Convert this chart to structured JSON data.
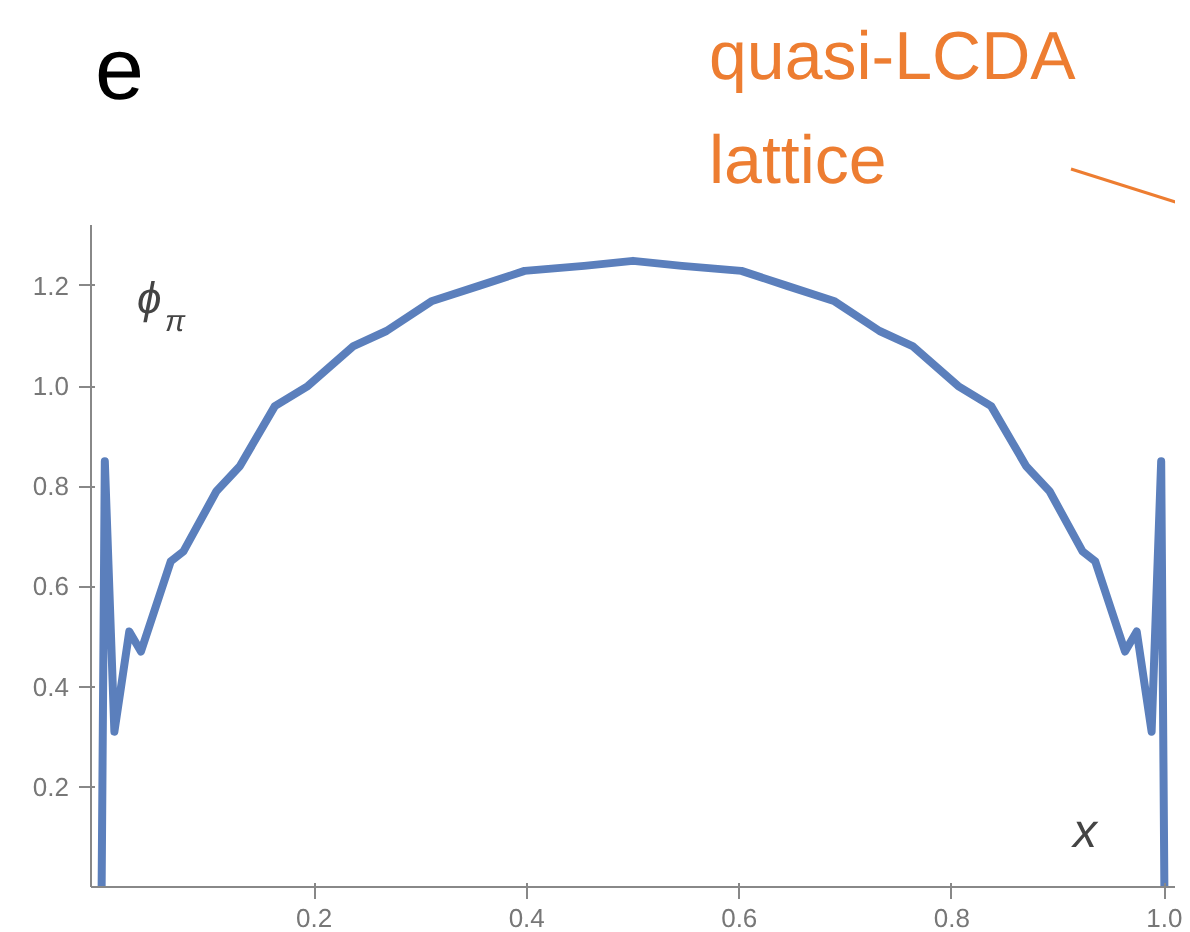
{
  "chart_data": {
    "type": "line",
    "title": "e",
    "annotations": [
      "quasi-LCDA",
      "lattice"
    ],
    "xlabel": "x",
    "ylabel": "ϕ$_{π}$",
    "xlim": [
      -0.01,
      1.01
    ],
    "ylim": [
      0,
      1.32
    ],
    "xticks": [
      0.2,
      0.4,
      0.6,
      0.8,
      {
        "value": 1.0,
        "label": "1.0"
      }
    ],
    "yticks": [
      0.2,
      0.4,
      0.6,
      0.8,
      {
        "value": 1.0,
        "label": "1.0"
      },
      1.2
    ],
    "grid": false,
    "marker": "none",
    "line_style": "solid",
    "series": [
      {
        "color": "#5b7fbc",
        "x": [
          0.0,
          0.003,
          0.012,
          0.026,
          0.037,
          0.065,
          0.077,
          0.108,
          0.13,
          0.163,
          0.194,
          0.237,
          0.268,
          0.311,
          0.355,
          0.398,
          0.454,
          0.5,
          0.546,
          0.602,
          0.645,
          0.689,
          0.732,
          0.763,
          0.806,
          0.837,
          0.87,
          0.892,
          0.923,
          0.935,
          0.963,
          0.974,
          0.988,
          0.997,
          1.0
        ],
        "values": [
          0.0,
          0.85,
          0.31,
          0.51,
          0.47,
          0.65,
          0.67,
          0.79,
          0.84,
          0.96,
          1.0,
          1.08,
          1.11,
          1.17,
          1.2,
          1.23,
          1.24,
          1.25,
          1.24,
          1.23,
          1.2,
          1.17,
          1.11,
          1.08,
          1.0,
          0.96,
          0.84,
          0.79,
          0.67,
          0.65,
          0.47,
          0.51,
          0.31,
          0.85,
          0.0
        ]
      }
    ]
  }
}
